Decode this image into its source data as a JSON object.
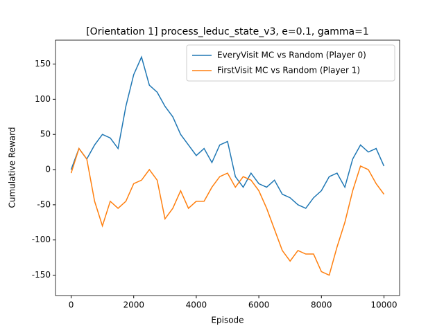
{
  "chart_data": {
    "type": "line",
    "title": "[Orientation 1] process_leduc_state_v3, e=0.1, gamma=1",
    "x_label": "Episode",
    "y_label": "Cumulative Reward",
    "x": [
      0,
      250,
      500,
      750,
      1000,
      1250,
      1500,
      1750,
      2000,
      2250,
      2500,
      2750,
      3000,
      3250,
      3500,
      3750,
      4000,
      4250,
      4500,
      4750,
      5000,
      5250,
      5500,
      5750,
      6000,
      6250,
      6500,
      6750,
      7000,
      7250,
      7500,
      7750,
      8000,
      8250,
      8500,
      8750,
      9000,
      9250,
      9500,
      9750,
      10000
    ],
    "series": [
      {
        "name": "EveryVisit MC vs Random (Player 0)",
        "color": "#1f77b4",
        "values": [
          0,
          30,
          15,
          35,
          50,
          45,
          30,
          90,
          135,
          160,
          120,
          110,
          90,
          75,
          50,
          35,
          20,
          30,
          10,
          35,
          40,
          -10,
          -25,
          -5,
          -20,
          -25,
          -15,
          -35,
          -40,
          -50,
          -55,
          -40,
          -30,
          -10,
          -5,
          -25,
          15,
          35,
          25,
          30,
          5
        ]
      },
      {
        "name": "FirstVisit MC vs Random (Player 1)",
        "color": "#ff7f0e",
        "values": [
          -5,
          30,
          15,
          -45,
          -80,
          -45,
          -55,
          -45,
          -20,
          -15,
          0,
          -15,
          -70,
          -55,
          -30,
          -55,
          -45,
          -45,
          -25,
          -10,
          -5,
          -25,
          -10,
          -15,
          -30,
          -55,
          -85,
          -115,
          -130,
          -115,
          -120,
          -120,
          -145,
          -150,
          -110,
          -75,
          -30,
          5,
          0,
          -20,
          -35
        ]
      }
    ],
    "xlim": [
      -500,
      10500
    ],
    "xticks": [
      0,
      2000,
      4000,
      6000,
      8000,
      10000
    ],
    "ylim": [
      -179,
      184
    ],
    "yticks": [
      -150,
      -100,
      -50,
      0,
      50,
      100,
      150
    ],
    "legend": "upper right"
  }
}
